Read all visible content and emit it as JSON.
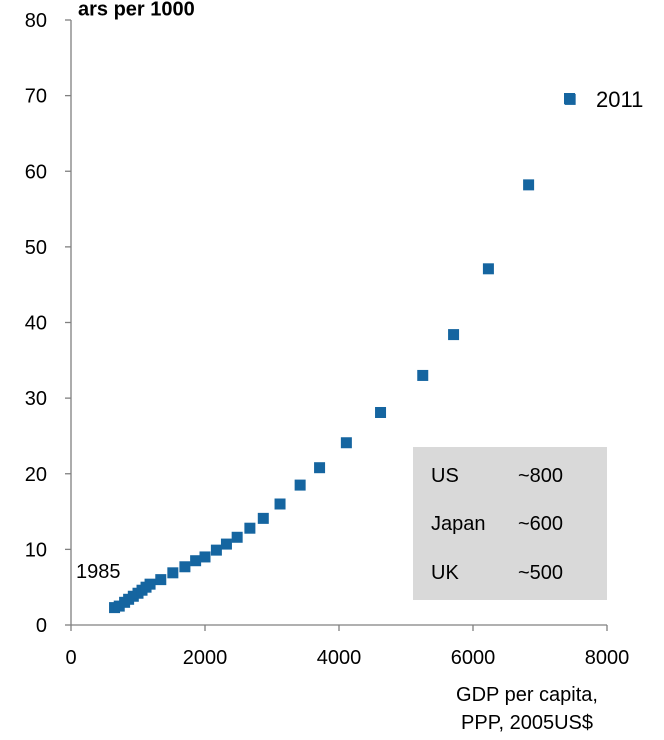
{
  "chart_data": {
    "type": "scatter",
    "title_fragment": "ars per 1000",
    "xlabel_line1": "GDP per capita,",
    "xlabel_line2": "PPP, 2005US$",
    "xlim": [
      0,
      8000
    ],
    "ylim": [
      0,
      80
    ],
    "xticks": [
      0,
      2000,
      4000,
      6000,
      8000
    ],
    "yticks": [
      0,
      10,
      20,
      30,
      40,
      50,
      60,
      70,
      80
    ],
    "grid": false,
    "marker_color": "#1565A0",
    "legend": {
      "label": "2011",
      "placement": "top-right"
    },
    "annotation_start": "1985",
    "series": [
      {
        "points": [
          [
            650,
            2.3
          ],
          [
            720,
            2.5
          ],
          [
            800,
            3.0
          ],
          [
            860,
            3.4
          ],
          [
            930,
            3.8
          ],
          [
            1000,
            4.2
          ],
          [
            1060,
            4.6
          ],
          [
            1120,
            5.0
          ],
          [
            1180,
            5.4
          ],
          [
            1340,
            6.0
          ],
          [
            1520,
            6.9
          ],
          [
            1700,
            7.7
          ],
          [
            1860,
            8.5
          ],
          [
            2000,
            9.0
          ],
          [
            2170,
            9.9
          ],
          [
            2320,
            10.7
          ],
          [
            2480,
            11.6
          ],
          [
            2670,
            12.8
          ],
          [
            2870,
            14.1
          ],
          [
            3120,
            16.0
          ],
          [
            3420,
            18.5
          ],
          [
            3710,
            20.8
          ],
          [
            4110,
            24.1
          ],
          [
            4620,
            28.1
          ],
          [
            5250,
            33.0
          ],
          [
            5710,
            38.4
          ],
          [
            6230,
            47.1
          ],
          [
            6830,
            58.2
          ],
          [
            7450,
            69.5
          ]
        ]
      }
    ],
    "inset_table": {
      "background": "#d9d9d9",
      "rows": [
        {
          "country": "US",
          "value": "~800"
        },
        {
          "country": "Japan",
          "value": "~600"
        },
        {
          "country": "UK",
          "value": "~500"
        }
      ]
    }
  }
}
